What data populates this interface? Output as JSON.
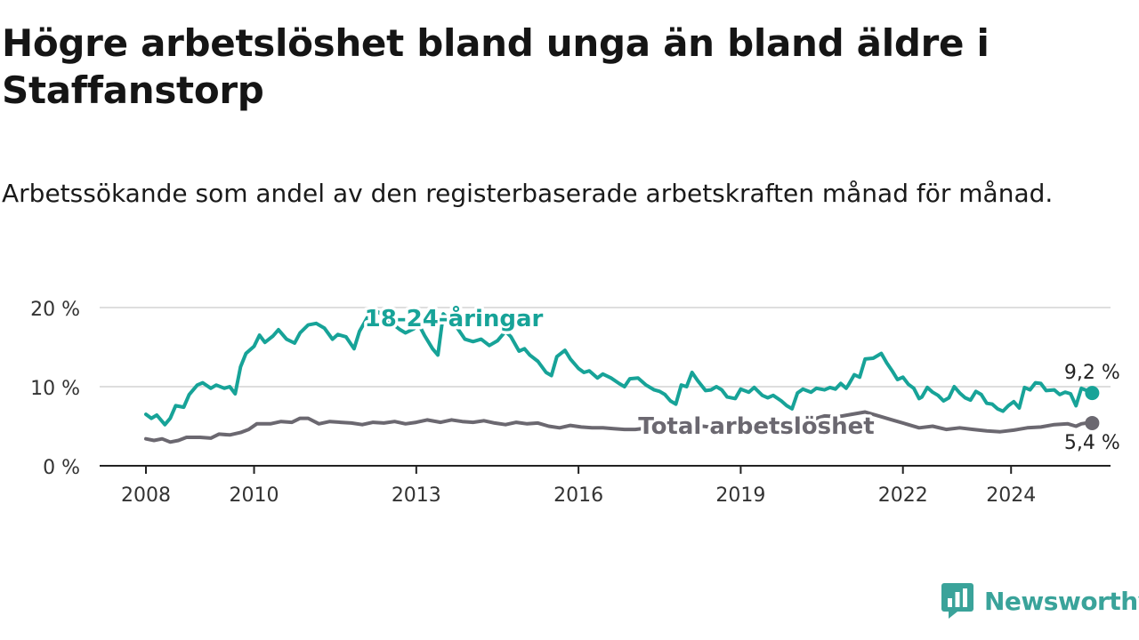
{
  "header": {
    "title": "Högre arbetslöshet bland unga än bland äldre i Staffanstorp",
    "subtitle": "Arbetssökande som andel av den registerbaserade arbetskraften månad för månad."
  },
  "brand": {
    "name": "Newsworthy",
    "icon": "newsworthy-logo-icon",
    "color": "#3aa39a"
  },
  "chart_data": {
    "type": "line",
    "title": "Högre arbetslöshet bland unga än bland äldre i Staffanstorp",
    "xlabel": "",
    "ylabel": "",
    "xlim": [
      2008.0,
      2025.0
    ],
    "ylim": [
      0,
      20
    ],
    "y_ticks": [
      0,
      10,
      20
    ],
    "y_tick_labels": [
      "0 %",
      "10 %",
      "20 %"
    ],
    "x_ticks": [
      2008,
      2010,
      2013,
      2016,
      2019,
      2022,
      2024
    ],
    "x_tick_labels": [
      "2008",
      "2010",
      "2013",
      "2016",
      "2019",
      "2022",
      "2024"
    ],
    "grid": true,
    "series": [
      {
        "name": "18-24-åringar",
        "color": "#17a398",
        "end_label": "9,2 %",
        "points": [
          [
            2008.0,
            6.5
          ],
          [
            2008.1,
            6.0
          ],
          [
            2008.2,
            6.4
          ],
          [
            2008.35,
            5.2
          ],
          [
            2008.45,
            6.0
          ],
          [
            2008.55,
            7.6
          ],
          [
            2008.7,
            7.4
          ],
          [
            2008.8,
            9.0
          ],
          [
            2008.95,
            10.2
          ],
          [
            2009.05,
            10.5
          ],
          [
            2009.2,
            9.8
          ],
          [
            2009.3,
            10.2
          ],
          [
            2009.45,
            9.8
          ],
          [
            2009.55,
            10.0
          ],
          [
            2009.65,
            9.1
          ],
          [
            2009.75,
            12.5
          ],
          [
            2009.85,
            14.2
          ],
          [
            2010.0,
            15.1
          ],
          [
            2010.1,
            16.5
          ],
          [
            2010.2,
            15.6
          ],
          [
            2010.35,
            16.4
          ],
          [
            2010.45,
            17.2
          ],
          [
            2010.6,
            16.0
          ],
          [
            2010.75,
            15.5
          ],
          [
            2010.85,
            16.8
          ],
          [
            2011.0,
            17.8
          ],
          [
            2011.15,
            18.0
          ],
          [
            2011.3,
            17.4
          ],
          [
            2011.45,
            16.0
          ],
          [
            2011.55,
            16.6
          ],
          [
            2011.7,
            16.3
          ],
          [
            2011.85,
            14.8
          ],
          [
            2011.95,
            17.0
          ],
          [
            2012.1,
            18.8
          ],
          [
            2012.25,
            19.6
          ],
          [
            2012.4,
            19.0
          ],
          [
            2012.55,
            18.0
          ],
          [
            2012.7,
            17.2
          ],
          [
            2012.8,
            16.8
          ],
          [
            2012.95,
            17.3
          ],
          [
            2013.05,
            17.8
          ],
          [
            2013.15,
            16.5
          ],
          [
            2013.3,
            14.8
          ],
          [
            2013.4,
            14.0
          ],
          [
            2013.5,
            19.2
          ],
          [
            2013.6,
            18.5
          ],
          [
            2013.75,
            17.5
          ],
          [
            2013.9,
            16.0
          ],
          [
            2014.05,
            15.7
          ],
          [
            2014.2,
            16.0
          ],
          [
            2014.35,
            15.2
          ],
          [
            2014.5,
            15.8
          ],
          [
            2014.65,
            17.0
          ],
          [
            2014.75,
            16.3
          ],
          [
            2014.9,
            14.5
          ],
          [
            2015.0,
            14.8
          ],
          [
            2015.1,
            14.0
          ],
          [
            2015.25,
            13.2
          ],
          [
            2015.4,
            11.8
          ],
          [
            2015.5,
            11.4
          ],
          [
            2015.6,
            13.8
          ],
          [
            2015.75,
            14.6
          ],
          [
            2015.85,
            13.5
          ],
          [
            2016.0,
            12.3
          ],
          [
            2016.1,
            11.8
          ],
          [
            2016.2,
            12.0
          ],
          [
            2016.35,
            11.1
          ],
          [
            2016.45,
            11.6
          ],
          [
            2016.6,
            11.1
          ],
          [
            2016.75,
            10.4
          ],
          [
            2016.85,
            10.0
          ],
          [
            2016.95,
            11.0
          ],
          [
            2017.1,
            11.1
          ],
          [
            2017.25,
            10.2
          ],
          [
            2017.4,
            9.6
          ],
          [
            2017.5,
            9.4
          ],
          [
            2017.6,
            9.0
          ],
          [
            2017.7,
            8.2
          ],
          [
            2017.8,
            7.8
          ],
          [
            2017.9,
            10.2
          ],
          [
            2018.0,
            10.0
          ],
          [
            2018.1,
            11.8
          ],
          [
            2018.2,
            10.8
          ],
          [
            2018.35,
            9.5
          ],
          [
            2018.45,
            9.6
          ],
          [
            2018.55,
            10.0
          ],
          [
            2018.65,
            9.6
          ],
          [
            2018.75,
            8.7
          ],
          [
            2018.9,
            8.5
          ],
          [
            2019.0,
            9.7
          ],
          [
            2019.15,
            9.3
          ],
          [
            2019.25,
            9.9
          ],
          [
            2019.4,
            8.9
          ],
          [
            2019.5,
            8.6
          ],
          [
            2019.6,
            8.9
          ],
          [
            2019.75,
            8.2
          ],
          [
            2019.85,
            7.6
          ],
          [
            2019.95,
            7.2
          ],
          [
            2020.05,
            9.2
          ],
          [
            2020.15,
            9.7
          ],
          [
            2020.3,
            9.3
          ],
          [
            2020.4,
            9.8
          ],
          [
            2020.55,
            9.6
          ],
          [
            2020.65,
            9.9
          ],
          [
            2020.75,
            9.7
          ],
          [
            2020.85,
            10.4
          ],
          [
            2020.95,
            9.8
          ],
          [
            2021.0,
            10.3
          ],
          [
            2021.1,
            11.5
          ],
          [
            2021.2,
            11.2
          ],
          [
            2021.3,
            13.5
          ],
          [
            2021.45,
            13.6
          ],
          [
            2021.6,
            14.2
          ],
          [
            2021.7,
            13.0
          ],
          [
            2021.8,
            12.0
          ],
          [
            2021.9,
            10.9
          ],
          [
            2022.0,
            11.2
          ],
          [
            2022.1,
            10.3
          ],
          [
            2022.2,
            9.8
          ],
          [
            2022.3,
            8.5
          ],
          [
            2022.35,
            8.7
          ],
          [
            2022.45,
            9.9
          ],
          [
            2022.55,
            9.3
          ],
          [
            2022.65,
            8.9
          ],
          [
            2022.75,
            8.2
          ],
          [
            2022.85,
            8.6
          ],
          [
            2022.95,
            10.0
          ],
          [
            2023.05,
            9.2
          ],
          [
            2023.15,
            8.6
          ],
          [
            2023.25,
            8.3
          ],
          [
            2023.35,
            9.4
          ],
          [
            2023.45,
            9.0
          ],
          [
            2023.55,
            7.9
          ],
          [
            2023.65,
            7.8
          ],
          [
            2023.75,
            7.2
          ],
          [
            2023.85,
            6.9
          ],
          [
            2023.95,
            7.6
          ],
          [
            2024.05,
            8.1
          ],
          [
            2024.15,
            7.3
          ],
          [
            2024.25,
            9.9
          ],
          [
            2024.35,
            9.6
          ],
          [
            2024.45,
            10.5
          ],
          [
            2024.55,
            10.4
          ],
          [
            2024.65,
            9.5
          ],
          [
            2024.8,
            9.6
          ],
          [
            2024.9,
            9.0
          ],
          [
            2025.0,
            9.3
          ],
          [
            2025.1,
            9.1
          ],
          [
            2025.2,
            7.6
          ],
          [
            2025.3,
            9.8
          ],
          [
            2025.4,
            9.5
          ],
          [
            2025.5,
            9.2
          ]
        ]
      },
      {
        "name": "Total arbetslöshet",
        "color": "#6b6870",
        "end_label": "5,4 %",
        "points": [
          [
            2008.0,
            3.4
          ],
          [
            2008.15,
            3.2
          ],
          [
            2008.3,
            3.4
          ],
          [
            2008.45,
            3.0
          ],
          [
            2008.6,
            3.2
          ],
          [
            2008.75,
            3.6
          ],
          [
            2009.0,
            3.6
          ],
          [
            2009.2,
            3.5
          ],
          [
            2009.35,
            4.0
          ],
          [
            2009.55,
            3.9
          ],
          [
            2009.75,
            4.2
          ],
          [
            2009.9,
            4.6
          ],
          [
            2010.05,
            5.3
          ],
          [
            2010.3,
            5.3
          ],
          [
            2010.5,
            5.6
          ],
          [
            2010.7,
            5.5
          ],
          [
            2010.85,
            6.0
          ],
          [
            2011.0,
            6.0
          ],
          [
            2011.2,
            5.3
          ],
          [
            2011.4,
            5.6
          ],
          [
            2011.6,
            5.5
          ],
          [
            2011.8,
            5.4
          ],
          [
            2012.0,
            5.2
          ],
          [
            2012.2,
            5.5
          ],
          [
            2012.4,
            5.4
          ],
          [
            2012.6,
            5.6
          ],
          [
            2012.8,
            5.3
          ],
          [
            2013.0,
            5.5
          ],
          [
            2013.2,
            5.8
          ],
          [
            2013.45,
            5.5
          ],
          [
            2013.65,
            5.8
          ],
          [
            2013.85,
            5.6
          ],
          [
            2014.05,
            5.5
          ],
          [
            2014.25,
            5.7
          ],
          [
            2014.45,
            5.4
          ],
          [
            2014.65,
            5.2
          ],
          [
            2014.85,
            5.5
          ],
          [
            2015.05,
            5.3
          ],
          [
            2015.25,
            5.4
          ],
          [
            2015.45,
            5.0
          ],
          [
            2015.65,
            4.8
          ],
          [
            2015.85,
            5.1
          ],
          [
            2016.05,
            4.9
          ],
          [
            2016.25,
            4.8
          ],
          [
            2016.45,
            4.8
          ],
          [
            2016.65,
            4.7
          ],
          [
            2016.85,
            4.6
          ],
          [
            2017.05,
            4.6
          ],
          [
            2017.3,
            4.8
          ],
          [
            2017.55,
            5.0
          ],
          [
            2017.8,
            4.9
          ],
          [
            2018.05,
            4.8
          ],
          [
            2018.3,
            5.0
          ],
          [
            2018.55,
            4.8
          ],
          [
            2018.8,
            5.2
          ],
          [
            2019.05,
            4.9
          ],
          [
            2019.3,
            5.1
          ],
          [
            2019.55,
            4.9
          ],
          [
            2019.8,
            5.0
          ],
          [
            2020.05,
            5.4
          ],
          [
            2020.3,
            5.8
          ],
          [
            2020.55,
            6.3
          ],
          [
            2020.8,
            6.2
          ],
          [
            2021.05,
            6.5
          ],
          [
            2021.3,
            6.8
          ],
          [
            2021.55,
            6.3
          ],
          [
            2021.8,
            5.8
          ],
          [
            2022.05,
            5.3
          ],
          [
            2022.3,
            4.8
          ],
          [
            2022.55,
            5.0
          ],
          [
            2022.8,
            4.6
          ],
          [
            2023.05,
            4.8
          ],
          [
            2023.3,
            4.6
          ],
          [
            2023.55,
            4.4
          ],
          [
            2023.8,
            4.3
          ],
          [
            2024.05,
            4.5
          ],
          [
            2024.3,
            4.8
          ],
          [
            2024.55,
            4.9
          ],
          [
            2024.8,
            5.2
          ],
          [
            2025.05,
            5.3
          ],
          [
            2025.2,
            5.0
          ],
          [
            2025.3,
            5.3
          ],
          [
            2025.4,
            5.4
          ],
          [
            2025.5,
            5.4
          ]
        ]
      }
    ]
  }
}
